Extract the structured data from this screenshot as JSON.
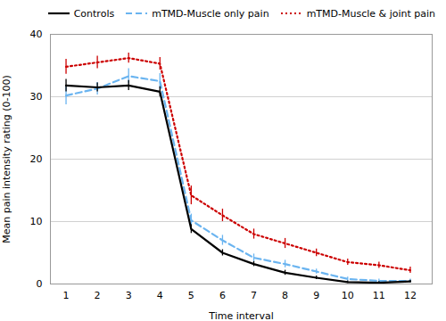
{
  "chart_data": {
    "type": "line",
    "xlabel": "Time interval",
    "ylabel": "Mean pain intensity rating (0-100)",
    "x": [
      1,
      2,
      3,
      4,
      5,
      6,
      7,
      8,
      9,
      10,
      11,
      12
    ],
    "series": [
      {
        "name": "Controls",
        "color": "#000000",
        "line_style": "solid",
        "values": [
          31.8,
          31.5,
          31.8,
          30.8,
          8.8,
          5.0,
          3.2,
          1.8,
          1.0,
          0.3,
          0.2,
          0.4
        ],
        "errors": [
          1.0,
          0.7,
          0.8,
          0.8,
          0.7,
          0.5,
          0.4,
          0.4,
          0.3,
          0.2,
          0.2,
          0.2
        ]
      },
      {
        "name": "mTMD-Muscle only pain",
        "color": "#6ab4f0",
        "line_style": "dashed",
        "values": [
          30.2,
          31.3,
          33.3,
          32.5,
          10.2,
          7.0,
          4.2,
          3.2,
          2.0,
          0.8,
          0.5,
          0.5
        ],
        "errors": [
          1.5,
          1.0,
          1.2,
          1.2,
          1.0,
          0.8,
          0.6,
          0.6,
          0.4,
          0.3,
          0.3,
          0.3
        ]
      },
      {
        "name": "mTMD-Muscle & joint pain",
        "color": "#cc0000",
        "line_style": "dotted",
        "values": [
          34.8,
          35.5,
          36.2,
          35.3,
          14.2,
          11.0,
          8.0,
          6.5,
          5.0,
          3.5,
          3.0,
          2.2
        ],
        "errors": [
          1.2,
          1.0,
          0.8,
          1.0,
          1.5,
          1.0,
          0.8,
          0.8,
          0.6,
          0.5,
          0.5,
          0.5
        ]
      }
    ],
    "xlim": [
      0.5,
      12.7
    ],
    "xticks": [
      1,
      2,
      3,
      4,
      5,
      6,
      7,
      8,
      9,
      10,
      11,
      12
    ],
    "ylim": [
      0,
      40
    ],
    "yticks": [
      0,
      10,
      20,
      30,
      40
    ],
    "grid": true,
    "legend": "upper right"
  }
}
